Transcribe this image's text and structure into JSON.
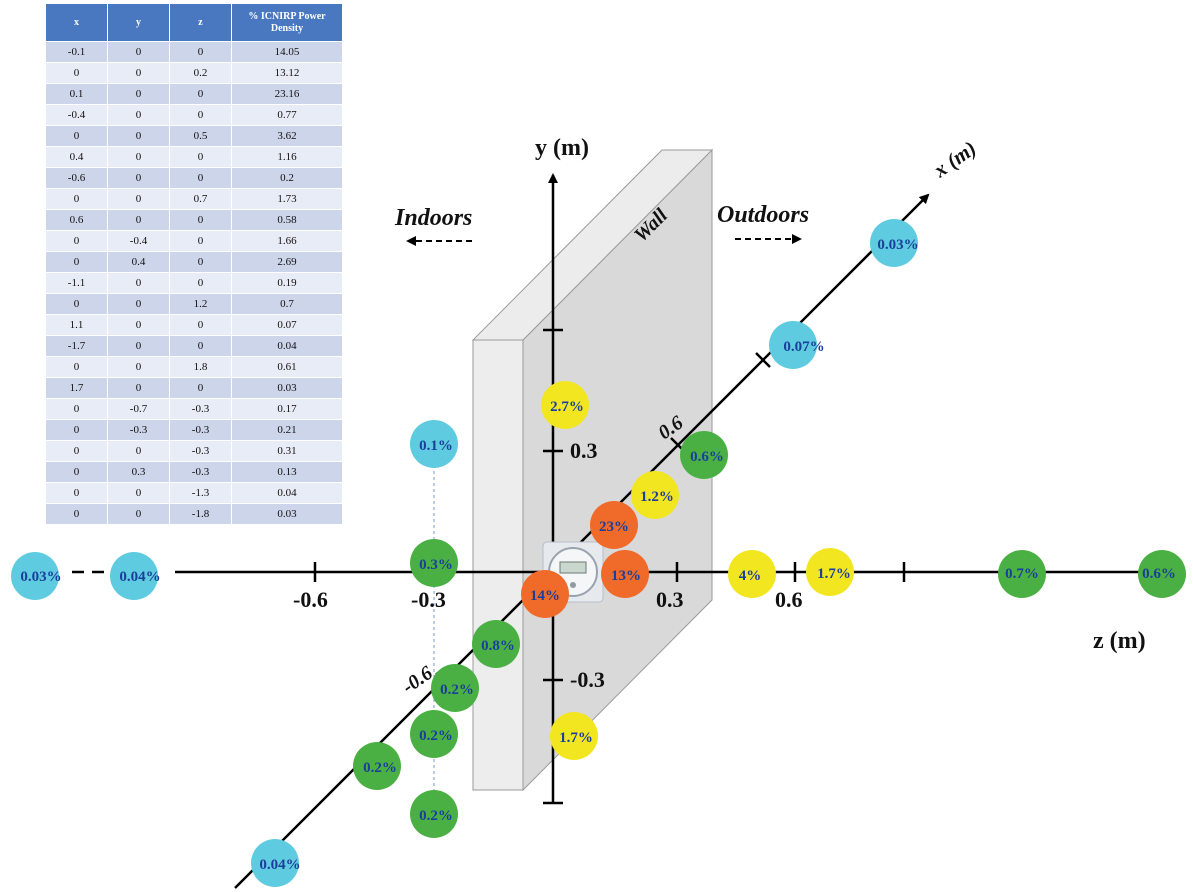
{
  "table": {
    "headers": [
      "x",
      "y",
      "z",
      "% ICNIRP Power Density"
    ],
    "rows": [
      [
        "-0.1",
        "0",
        "0",
        "14.05"
      ],
      [
        "0",
        "0",
        "0.2",
        "13.12"
      ],
      [
        "0.1",
        "0",
        "0",
        "23.16"
      ],
      [
        "-0.4",
        "0",
        "0",
        "0.77"
      ],
      [
        "0",
        "0",
        "0.5",
        "3.62"
      ],
      [
        "0.4",
        "0",
        "0",
        "1.16"
      ],
      [
        "-0.6",
        "0",
        "0",
        "0.2"
      ],
      [
        "0",
        "0",
        "0.7",
        "1.73"
      ],
      [
        "0.6",
        "0",
        "0",
        "0.58"
      ],
      [
        "0",
        "-0.4",
        "0",
        "1.66"
      ],
      [
        "0",
        "0.4",
        "0",
        "2.69"
      ],
      [
        "-1.1",
        "0",
        "0",
        "0.19"
      ],
      [
        "0",
        "0",
        "1.2",
        "0.7"
      ],
      [
        "1.1",
        "0",
        "0",
        "0.07"
      ],
      [
        "-1.7",
        "0",
        "0",
        "0.04"
      ],
      [
        "0",
        "0",
        "1.8",
        "0.61"
      ],
      [
        "1.7",
        "0",
        "0",
        "0.03"
      ],
      [
        "0",
        "-0.7",
        "-0.3",
        "0.17"
      ],
      [
        "0",
        "-0.3",
        "-0.3",
        "0.21"
      ],
      [
        "0",
        "0",
        "-0.3",
        "0.31"
      ],
      [
        "0",
        "0.3",
        "-0.3",
        "0.13"
      ],
      [
        "0",
        "0",
        "-1.3",
        "0.04"
      ],
      [
        "0",
        "0",
        "-1.8",
        "0.03"
      ]
    ]
  },
  "diagram": {
    "y_axis_label": "y (m)",
    "x_axis_label": "x (m)",
    "z_axis_label": "z (m)",
    "indoors_label": "Indoors",
    "outdoors_label": "Outdoors",
    "wall_label": "Wall",
    "z_ticks": [
      "-0.6",
      "-0.3",
      "0.3",
      "0.6"
    ],
    "y_ticks": [
      "0.3",
      "-0.3"
    ],
    "x_ticks": [
      "0.6",
      "-0.6"
    ],
    "colors": {
      "red": "#f06a2a",
      "yellow": "#f2e620",
      "green": "#4bb043",
      "blue": "#5fcbe0",
      "label_text": "#1a3f9a",
      "table_header": "#4a78c0"
    },
    "markers": [
      {
        "label": "0.03%",
        "color": "blue"
      },
      {
        "label": "0.04%",
        "color": "blue"
      },
      {
        "label": "0.3%",
        "color": "green"
      },
      {
        "label": "0.1%",
        "color": "blue"
      },
      {
        "label": "0.2%",
        "color": "green"
      },
      {
        "label": "0.2%",
        "color": "green"
      },
      {
        "label": "0.2%",
        "color": "green"
      },
      {
        "label": "0.04%",
        "color": "blue"
      },
      {
        "label": "0.2%",
        "color": "green"
      },
      {
        "label": "0.8%",
        "color": "green"
      },
      {
        "label": "14%",
        "color": "red"
      },
      {
        "label": "23%",
        "color": "red"
      },
      {
        "label": "13%",
        "color": "red"
      },
      {
        "label": "1.2%",
        "color": "yellow"
      },
      {
        "label": "0.6%",
        "color": "green"
      },
      {
        "label": "0.07%",
        "color": "blue"
      },
      {
        "label": "0.03%",
        "color": "blue"
      },
      {
        "label": "2.7%",
        "color": "yellow"
      },
      {
        "label": "1.7%",
        "color": "yellow"
      },
      {
        "label": "4%",
        "color": "yellow"
      },
      {
        "label": "1.7%",
        "color": "yellow"
      },
      {
        "label": "0.7%",
        "color": "green"
      },
      {
        "label": "0.6%",
        "color": "green"
      }
    ]
  }
}
